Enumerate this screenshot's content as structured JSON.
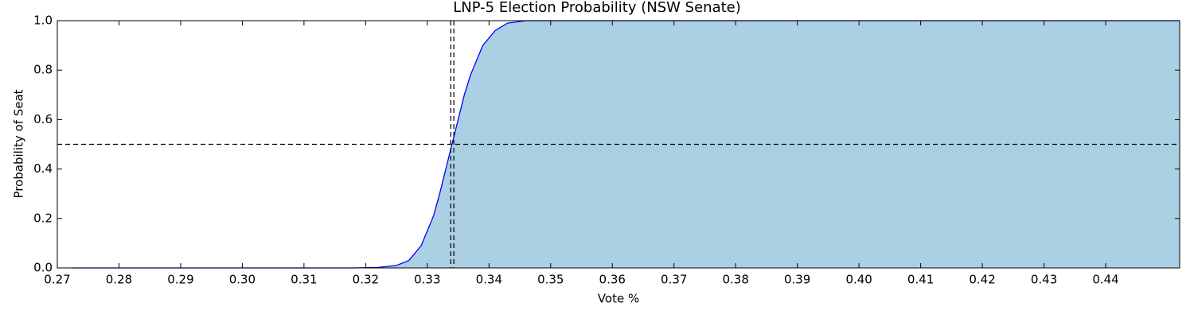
{
  "chart_data": {
    "type": "line",
    "title": "LNP-5 Election Probability (NSW Senate)",
    "xlabel": "Vote %",
    "ylabel": "Probability of Seat",
    "x": [
      0.2723,
      0.31,
      0.318,
      0.322,
      0.325,
      0.327,
      0.329,
      0.331,
      0.332,
      0.333,
      0.334,
      0.335,
      0.336,
      0.337,
      0.339,
      0.341,
      0.343,
      0.346,
      0.35,
      0.452
    ],
    "series": [
      {
        "color": "#0000ff",
        "fill": "#abd0e4",
        "values": [
          0,
          0,
          0,
          0.002,
          0.01,
          0.03,
          0.09,
          0.21,
          0.3,
          0.4,
          0.5,
          0.6,
          0.7,
          0.78,
          0.9,
          0.96,
          0.99,
          1,
          1,
          1
        ]
      }
    ],
    "hlines": [
      0.5
    ],
    "vlines": [
      0.3338,
      0.3343
    ],
    "ref_line_color": "#000000",
    "xlim": [
      0.27,
      0.452
    ],
    "ylim": [
      0,
      1
    ],
    "xticks": [
      0.27,
      0.28,
      0.29,
      {
        "value": 0.3,
        "label": "0.30"
      },
      0.31,
      0.32,
      0.33,
      0.34,
      0.35,
      0.36,
      0.37,
      0.38,
      0.39,
      {
        "value": 0.4,
        "label": "0.40"
      },
      0.41,
      0.42,
      0.43,
      0.44
    ],
    "yticks": [
      {
        "value": 0,
        "label": "0.0"
      },
      0.2,
      0.4,
      0.6,
      0.8,
      {
        "value": 1,
        "label": "1.0"
      }
    ],
    "grid": false
  }
}
